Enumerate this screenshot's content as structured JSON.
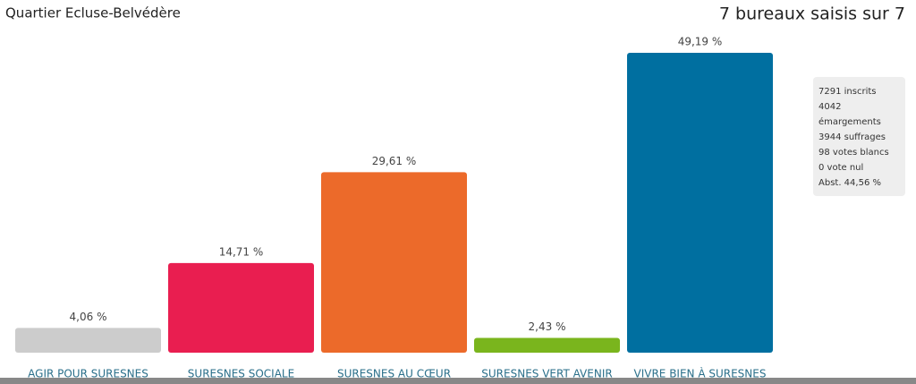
{
  "chart_data": {
    "type": "bar",
    "title": "Quartier Ecluse-Belvédère",
    "subtitle": "7 bureaux saisis sur 7",
    "categories": [
      "AGIR POUR SURESNES",
      "SURESNES SOCIALE",
      "SURESNES AU CŒUR",
      "SURESNES VERT AVENIR",
      "VIVRE BIEN À SURESNES"
    ],
    "values": [
      4.06,
      14.71,
      29.61,
      2.43,
      49.19
    ],
    "value_labels": [
      "4,06 %",
      "14,71 %",
      "29,61 %",
      "2,43 %",
      "49,19 %"
    ],
    "colors": [
      "#cccccc",
      "#e91e50",
      "#ec6a2a",
      "#7ab51d",
      "#006fa0"
    ],
    "annotations": [
      "7291 inscrits",
      "4042 émargements",
      "3944 suffrages",
      "98 votes blancs",
      "0 vote nul",
      "Abst. 44,56 %"
    ]
  }
}
